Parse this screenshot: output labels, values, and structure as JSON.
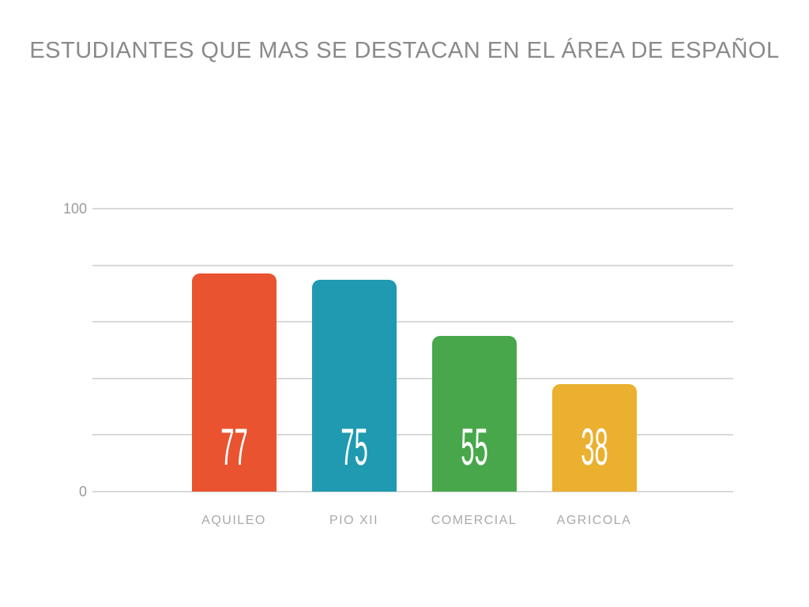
{
  "chart_data": {
    "type": "bar",
    "title": "ESTUDIANTES QUE MAS SE DESTACAN EN EL ÁREA DE ESPAÑOL",
    "categories": [
      "AQUILEO",
      "PIO XII",
      "COMERCIAL",
      "AGRICOLA"
    ],
    "values": [
      77,
      75,
      55,
      38
    ],
    "value_labels": [
      "77",
      "75",
      "55",
      "38"
    ],
    "bar_colors": [
      "#EA5330",
      "#1F9AB0",
      "#48A74B",
      "#EBB02F"
    ],
    "ylim": [
      0,
      100
    ],
    "yticks": [
      {
        "value": 100,
        "label": "100"
      },
      {
        "value": 0,
        "label": "0"
      }
    ],
    "gridline_values": [
      100,
      80,
      60,
      40,
      20,
      0
    ],
    "grid": true,
    "legend": false,
    "xlabel": "",
    "ylabel": "",
    "colors": {
      "background": "#ffffff",
      "title_text": "#8a8a8a",
      "axis_text": "#9b9b9b",
      "category_text": "#a9a9a9",
      "gridline": "#d9d9d9",
      "value_text": "#ffffff"
    }
  }
}
